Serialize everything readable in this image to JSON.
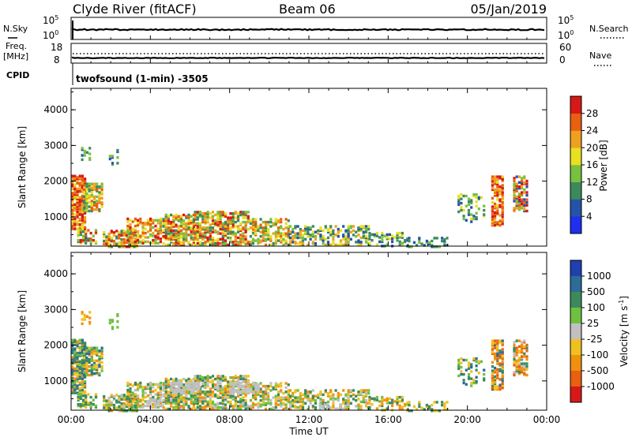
{
  "header": {
    "station": "Clyde River (fitACF)",
    "beam": "Beam 06",
    "date": "05/Jan/2019"
  },
  "top_panel_1": {
    "left_label": "N.Sky",
    "left_ticks": [
      "10^5",
      "10^0"
    ],
    "right_label": "N.Search",
    "right_ticks": [
      "10^5",
      "10^0"
    ]
  },
  "top_panel_2": {
    "left_label_1": "Freq.",
    "left_label_2": "[MHz]",
    "left_ticks": [
      "18",
      "8"
    ],
    "right_label": "Nave",
    "right_ticks": [
      "60",
      "0"
    ]
  },
  "cpid": {
    "label": "CPID",
    "text": "twofsound (1-min) -3505"
  },
  "chart_data": [
    {
      "type": "heatmap",
      "quantity": "Power",
      "ylabel": "Slant Range [km]",
      "xlabel": "Time UT",
      "x_ticks": [
        "00:00",
        "04:00",
        "08:00",
        "12:00",
        "16:00",
        "20:00",
        "00:00"
      ],
      "xlim_hours": [
        0,
        24
      ],
      "y_ticks": [
        1000,
        2000,
        3000,
        4000
      ],
      "ylim": [
        180,
        4600
      ],
      "colorbar": {
        "label": "Power [dB]",
        "ticks": [
          "4",
          "8",
          "12",
          "16",
          "20",
          "24",
          "28"
        ],
        "colors": [
          "#1e2ff0",
          "#2454a8",
          "#3c8a5c",
          "#78c040",
          "#e8e020",
          "#f0a020",
          "#e86010",
          "#d81818"
        ]
      }
    },
    {
      "type": "heatmap",
      "quantity": "Velocity",
      "ylabel": "Slant Range [km]",
      "xlabel": "Time UT",
      "x_ticks": [
        "00:00",
        "04:00",
        "08:00",
        "12:00",
        "16:00",
        "20:00",
        "00:00"
      ],
      "xlim_hours": [
        0,
        24
      ],
      "y_ticks": [
        1000,
        2000,
        3000,
        4000
      ],
      "ylim": [
        180,
        4600
      ],
      "colorbar": {
        "label": "Velocity [m s^-1]",
        "ticks": [
          "1000",
          "500",
          "100",
          "25",
          "-25",
          "-100",
          "-500",
          "-1000"
        ],
        "colors": [
          "#2040b0",
          "#2c6c98",
          "#3c8a5c",
          "#70c040",
          "#c0c0c0",
          "#f0c020",
          "#f09010",
          "#e86010",
          "#d81818"
        ]
      }
    }
  ],
  "colors": {
    "ground_scatter": "#c0c0c0"
  }
}
